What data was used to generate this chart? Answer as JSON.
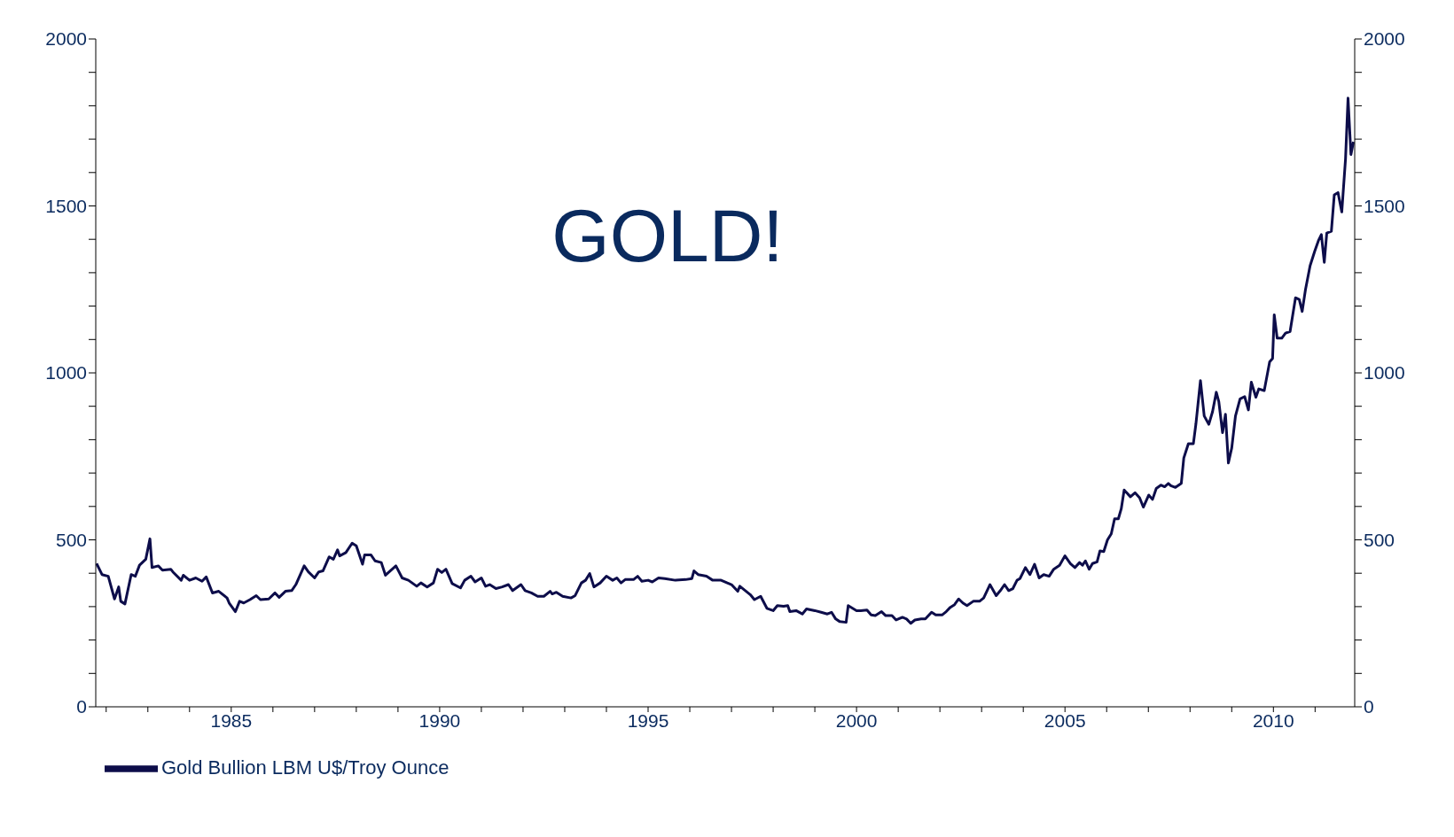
{
  "chart_data": {
    "type": "line",
    "title": "GOLD!",
    "legend": "bottom left",
    "marker": "none",
    "line_style": "solid",
    "xlim": [
      1981.75,
      2011.95
    ],
    "xticks": [
      {
        "value": 1982,
        "label": null
      },
      {
        "value": 1983,
        "label": null
      },
      {
        "value": 1984,
        "label": null
      },
      1985,
      {
        "value": 1986,
        "label": null
      },
      {
        "value": 1987,
        "label": null
      },
      {
        "value": 1988,
        "label": null
      },
      {
        "value": 1989,
        "label": null
      },
      1990,
      {
        "value": 1991,
        "label": null
      },
      {
        "value": 1992,
        "label": null
      },
      {
        "value": 1993,
        "label": null
      },
      {
        "value": 1994,
        "label": null
      },
      1995,
      {
        "value": 1996,
        "label": null
      },
      {
        "value": 1997,
        "label": null
      },
      {
        "value": 1998,
        "label": null
      },
      {
        "value": 1999,
        "label": null
      },
      2000,
      {
        "value": 2001,
        "label": null
      },
      {
        "value": 2002,
        "label": null
      },
      {
        "value": 2003,
        "label": null
      },
      {
        "value": 2004,
        "label": null
      },
      2005,
      {
        "value": 2006,
        "label": null
      },
      {
        "value": 2007,
        "label": null
      },
      {
        "value": 2008,
        "label": null
      },
      {
        "value": 2009,
        "label": null
      },
      2010,
      {
        "value": 2011,
        "label": null
      }
    ],
    "ylim": [
      0,
      2000
    ],
    "yticks": [
      0,
      {
        "value": 100,
        "label": null
      },
      {
        "value": 200,
        "label": null
      },
      {
        "value": 300,
        "label": null
      },
      {
        "value": 400,
        "label": null
      },
      500,
      {
        "value": 600,
        "label": null
      },
      {
        "value": 700,
        "label": null
      },
      {
        "value": 800,
        "label": null
      },
      {
        "value": 900,
        "label": null
      },
      1000,
      {
        "value": 1100,
        "label": null
      },
      {
        "value": 1200,
        "label": null
      },
      {
        "value": 1300,
        "label": null
      },
      {
        "value": 1400,
        "label": null
      },
      1500,
      {
        "value": 1600,
        "label": null
      },
      {
        "value": 1700,
        "label": null
      },
      {
        "value": 1800,
        "label": null
      },
      {
        "value": 1900,
        "label": null
      },
      2000
    ],
    "y2lim": [
      0,
      2000
    ],
    "y2ticks": [
      0,
      {
        "value": 100,
        "label": null
      },
      {
        "value": 200,
        "label": null
      },
      {
        "value": 300,
        "label": null
      },
      {
        "value": 400,
        "label": null
      },
      500,
      {
        "value": 600,
        "label": null
      },
      {
        "value": 700,
        "label": null
      },
      {
        "value": 800,
        "label": null
      },
      {
        "value": 900,
        "label": null
      },
      1000,
      {
        "value": 1100,
        "label": null
      },
      {
        "value": 1200,
        "label": null
      },
      {
        "value": 1300,
        "label": null
      },
      {
        "value": 1400,
        "label": null
      },
      1500,
      {
        "value": 1600,
        "label": null
      },
      {
        "value": 1700,
        "label": null
      },
      {
        "value": 1800,
        "label": null
      },
      {
        "value": 1900,
        "label": null
      },
      2000
    ],
    "series": [
      {
        "name": "Gold Bullion LBM U$/Troy Ounce",
        "color": "#0d0d4a",
        "x": [
          1981.77,
          1981.9,
          1982.05,
          1982.2,
          1982.3,
          1982.35,
          1982.45,
          1982.6,
          1982.7,
          1982.8,
          1982.95,
          1983.05,
          1983.1,
          1983.25,
          1983.35,
          1983.55,
          1983.6,
          1983.8,
          1983.85,
          1984,
          1984.15,
          1984.3,
          1984.4,
          1984.55,
          1984.7,
          1984.9,
          1984.95,
          1985.1,
          1985.2,
          1985.3,
          1985.45,
          1985.6,
          1985.7,
          1985.9,
          1986.05,
          1986.15,
          1986.3,
          1986.45,
          1986.55,
          1986.75,
          1986.85,
          1987,
          1987.1,
          1987.2,
          1987.35,
          1987.45,
          1987.55,
          1987.6,
          1987.75,
          1987.9,
          1988,
          1988.15,
          1988.2,
          1988.35,
          1988.45,
          1988.6,
          1988.7,
          1988.95,
          1989.1,
          1989.25,
          1989.45,
          1989.55,
          1989.7,
          1989.85,
          1989.95,
          1990.05,
          1990.15,
          1990.3,
          1990.5,
          1990.6,
          1990.75,
          1990.85,
          1991,
          1991.1,
          1991.2,
          1991.35,
          1991.5,
          1991.65,
          1991.75,
          1991.95,
          1992.05,
          1992.2,
          1992.35,
          1992.5,
          1992.65,
          1992.7,
          1992.8,
          1992.95,
          1993.15,
          1993.25,
          1993.4,
          1993.5,
          1993.6,
          1993.7,
          1993.85,
          1994,
          1994.15,
          1994.25,
          1994.35,
          1994.45,
          1994.65,
          1994.75,
          1994.85,
          1995,
          1995.1,
          1995.25,
          1995.4,
          1995.65,
          1995.9,
          1996.05,
          1996.1,
          1996.2,
          1996.4,
          1996.55,
          1996.75,
          1996.9,
          1997,
          1997.15,
          1997.2,
          1997.45,
          1997.55,
          1997.7,
          1997.85,
          1998,
          1998.1,
          1998.25,
          1998.35,
          1998.4,
          1998.55,
          1998.7,
          1998.8,
          1999,
          1999.15,
          1999.3,
          1999.4,
          1999.5,
          1999.6,
          1999.75,
          1999.8,
          2000,
          2000.1,
          2000.25,
          2000.35,
          2000.45,
          2000.6,
          2000.7,
          2000.85,
          2000.95,
          2001.1,
          2001.2,
          2001.3,
          2001.4,
          2001.55,
          2001.65,
          2001.8,
          2001.9,
          2002.05,
          2002.15,
          2002.25,
          2002.35,
          2002.45,
          2002.55,
          2002.65,
          2002.8,
          2002.95,
          2003.05,
          2003.2,
          2003.35,
          2003.45,
          2003.55,
          2003.65,
          2003.75,
          2003.85,
          2003.92,
          2004.05,
          2004.16,
          2004.27,
          2004.38,
          2004.49,
          2004.62,
          2004.73,
          2004.87,
          2005,
          2005.13,
          2005.24,
          2005.35,
          2005.42,
          2005.49,
          2005.58,
          2005.66,
          2005.77,
          2005.84,
          2005.93,
          2006.02,
          2006.11,
          2006.19,
          2006.28,
          2006.35,
          2006.42,
          2006.57,
          2006.68,
          2006.79,
          2006.88,
          2007.01,
          2007.1,
          2007.19,
          2007.3,
          2007.39,
          2007.48,
          2007.54,
          2007.65,
          2007.79,
          2007.85,
          2007.96,
          2008.08,
          2008.14,
          2008.25,
          2008.34,
          2008.45,
          2008.54,
          2008.63,
          2008.69,
          2008.78,
          2008.85,
          2008.92,
          2009,
          2009.09,
          2009.2,
          2009.31,
          2009.4,
          2009.47,
          2009.58,
          2009.65,
          2009.78,
          2009.91,
          2009.98,
          2010.02,
          2010.09,
          2010.2,
          2010.29,
          2010.4,
          2010.53,
          2010.62,
          2010.69,
          2010.77,
          2010.88,
          2010.99,
          2011.08,
          2011.15,
          2011.22,
          2011.28,
          2011.39,
          2011.46,
          2011.55,
          2011.64,
          2011.73,
          2011.79,
          2011.86,
          2011.92
        ],
        "values": [
          429,
          396,
          391,
          323,
          359,
          316,
          308,
          396,
          391,
          424,
          442,
          503,
          417,
          422,
          409,
          412,
          404,
          379,
          394,
          379,
          386,
          376,
          389,
          341,
          346,
          326,
          311,
          285,
          316,
          311,
          321,
          333,
          321,
          323,
          341,
          328,
          346,
          348,
          366,
          422,
          404,
          386,
          404,
          407,
          449,
          442,
          470,
          452,
          462,
          490,
          482,
          427,
          455,
          455,
          437,
          432,
          394,
          422,
          386,
          379,
          361,
          371,
          359,
          371,
          412,
          402,
          412,
          369,
          356,
          379,
          391,
          374,
          386,
          361,
          366,
          354,
          359,
          366,
          348,
          366,
          348,
          341,
          331,
          331,
          346,
          338,
          343,
          331,
          326,
          333,
          371,
          379,
          399,
          359,
          371,
          391,
          379,
          386,
          371,
          381,
          381,
          391,
          376,
          379,
          374,
          386,
          384,
          379,
          381,
          384,
          407,
          396,
          391,
          379,
          379,
          371,
          366,
          346,
          361,
          336,
          321,
          331,
          295,
          288,
          303,
          301,
          303,
          285,
          288,
          278,
          293,
          288,
          283,
          278,
          283,
          263,
          255,
          253,
          303,
          288,
          288,
          290,
          275,
          273,
          285,
          273,
          273,
          260,
          268,
          263,
          250,
          260,
          263,
          263,
          283,
          275,
          275,
          285,
          298,
          306,
          323,
          311,
          303,
          316,
          316,
          326,
          366,
          333,
          348,
          366,
          348,
          354,
          379,
          384,
          417,
          396,
          427,
          386,
          396,
          391,
          412,
          424,
          452,
          429,
          417,
          432,
          424,
          437,
          412,
          429,
          434,
          467,
          465,
          500,
          518,
          563,
          563,
          593,
          649,
          629,
          641,
          626,
          598,
          634,
          621,
          654,
          664,
          659,
          669,
          662,
          657,
          669,
          745,
          788,
          788,
          846,
          977,
          871,
          846,
          884,
          942,
          914,
          821,
          876,
          730,
          775,
          871,
          922,
          929,
          889,
          972,
          927,
          952,
          947,
          1033,
          1043,
          1174,
          1104,
          1104,
          1119,
          1124,
          1225,
          1220,
          1184,
          1250,
          1321,
          1364,
          1396,
          1414,
          1331,
          1419,
          1424,
          1533,
          1540,
          1482,
          1641,
          1823,
          1654,
          1692
        ]
      }
    ]
  }
}
